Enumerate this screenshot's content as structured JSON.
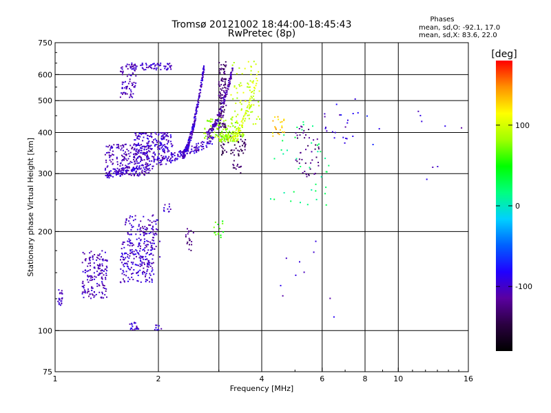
{
  "chart_data": {
    "type": "scatter",
    "title": "Tromsø 20121002 18:44:00-18:45:43",
    "subtitle": "RwPretec (8p)",
    "xlabel": "Frequency [MHz]",
    "ylabel": "Stationary phase Virtual Height [km]",
    "x_scale": "log",
    "y_scale": "log",
    "xlim": [
      1,
      16
    ],
    "ylim": [
      75,
      750
    ],
    "x_ticks": [
      1,
      2,
      4,
      6,
      8,
      10,
      16
    ],
    "x_tick_labels": [
      "1",
      "2",
      "4",
      "6",
      "8",
      "10",
      "16"
    ],
    "x_grid": [
      2,
      3,
      4,
      6,
      8,
      10
    ],
    "y_ticks": [
      75,
      100,
      200,
      300,
      400,
      500,
      600,
      750
    ],
    "y_tick_labels": [
      "75",
      "100",
      "200",
      "300",
      "400",
      "500",
      "600",
      "750"
    ],
    "y_grid": [
      100,
      200,
      300,
      400,
      500,
      600
    ],
    "grid": true,
    "stats": {
      "header": "Phases",
      "line_o": "mean, sd,O: -92.1, 17.0",
      "line_x": "mean, sd,X:  83.6, 22.0"
    },
    "colorbar": {
      "label": "[deg]",
      "range": [
        -180,
        180
      ],
      "ticks": [
        100,
        0,
        -100
      ],
      "tick_labels": [
        "100",
        "0",
        "-100"
      ],
      "colormap": [
        "#000000",
        "#2a0040",
        "#5a00a0",
        "#2000ff",
        "#0060ff",
        "#00d0ff",
        "#00ff80",
        "#00ff00",
        "#a0ff00",
        "#ffff00",
        "#ff9000",
        "#ff0000"
      ]
    },
    "clusters": [
      {
        "f": [
          1.02,
          1.05
        ],
        "h": [
          118,
          135
        ],
        "phase": -100,
        "n": 22
      },
      {
        "f": [
          1.2,
          1.42
        ],
        "h": [
          125,
          175
        ],
        "phase": -105,
        "n": 160
      },
      {
        "f": [
          1.55,
          1.95
        ],
        "h": [
          140,
          190
        ],
        "phase": -98,
        "n": 200
      },
      {
        "f": [
          1.6,
          2.0
        ],
        "h": [
          195,
          225
        ],
        "phase": -100,
        "n": 60
      },
      {
        "f": [
          1.75,
          2.02
        ],
        "h": [
          160,
          210
        ],
        "phase": -110,
        "n": 40
      },
      {
        "f": [
          1.55,
          1.72
        ],
        "h": [
          510,
          650
        ],
        "phase": -105,
        "n": 70
      },
      {
        "f": [
          1.65,
          2.2
        ],
        "h": [
          620,
          650
        ],
        "phase": -100,
        "n": 70
      },
      {
        "f": [
          1.7,
          2.2
        ],
        "h": [
          330,
          400
        ],
        "phase": -100,
        "n": 200
      },
      {
        "f": [
          1.4,
          1.9
        ],
        "h": [
          295,
          370
        ],
        "phase": -105,
        "n": 200
      },
      {
        "f": [
          1.65,
          1.75
        ],
        "h": [
          100,
          106
        ],
        "phase": -100,
        "n": 20
      },
      {
        "f": [
          1.95,
          2.05
        ],
        "h": [
          100,
          104
        ],
        "phase": -100,
        "n": 8
      },
      {
        "f": [
          2.05,
          2.22
        ],
        "h": [
          228,
          245
        ],
        "phase": -100,
        "n": 10
      },
      {
        "f": [
          2.4,
          2.55
        ],
        "h": [
          175,
          205
        ],
        "phase": -125,
        "n": 18
      },
      {
        "f": [
          2.9,
          3.1
        ],
        "h": [
          190,
          215
        ],
        "phase": 60,
        "n": 14
      },
      {
        "f": [
          3.3,
          3.5
        ],
        "h": [
          300,
          330
        ],
        "phase": -135,
        "n": 12
      },
      {
        "f": [
          3.0,
          3.6
        ],
        "h": [
          340,
          390
        ],
        "phase": -140,
        "n": 55
      },
      {
        "f": [
          2.7,
          3.4
        ],
        "h": [
          380,
          440
        ],
        "phase": 80,
        "n": 90
      },
      {
        "f": [
          3.25,
          3.95
        ],
        "h": [
          420,
          660
        ],
        "phase": 95,
        "n": 80
      },
      {
        "f": [
          3.0,
          3.15
        ],
        "h": [
          410,
          660
        ],
        "phase": -130,
        "n": 110
      },
      {
        "f": [
          4.3,
          4.7
        ],
        "h": [
          390,
          450
        ],
        "phase": 130,
        "n": 20
      },
      {
        "f": [
          5.0,
          5.9
        ],
        "h": [
          290,
          420
        ],
        "phase": -125,
        "n": 45
      },
      {
        "f": [
          4.2,
          6.3
        ],
        "h": [
          240,
          450
        ],
        "phase": 20,
        "n": 40
      },
      {
        "f": [
          6.1,
          7.2
        ],
        "h": [
          380,
          460
        ],
        "phase": -100,
        "n": 15
      },
      {
        "f": [
          6.5,
          9.0
        ],
        "h": [
          360,
          520
        ],
        "phase": -80,
        "n": 10
      },
      {
        "f": [
          4.5,
          6.5
        ],
        "h": [
          100,
          200
        ],
        "phase": -100,
        "n": 10
      },
      {
        "f": [
          11,
          16
        ],
        "h": [
          270,
          520
        ],
        "phase": -100,
        "n": 8
      }
    ],
    "envelopes": [
      {
        "f": [
          1.4,
          2.9
        ],
        "h": [
          300,
          380
        ],
        "phase": -100,
        "n": 220
      },
      {
        "f": [
          2.35,
          2.72
        ],
        "h": [
          340,
          640
        ],
        "phase": -100,
        "n": 220
      },
      {
        "f": [
          2.75,
          3.3
        ],
        "h": [
          390,
          630
        ],
        "phase": -110,
        "n": 120
      },
      {
        "f": [
          3.0,
          3.55
        ],
        "h": [
          385,
          390
        ],
        "phase": 85,
        "n": 60
      },
      {
        "f": [
          3.3,
          3.9
        ],
        "h": [
          390,
          600
        ],
        "phase": 100,
        "n": 70
      }
    ]
  }
}
